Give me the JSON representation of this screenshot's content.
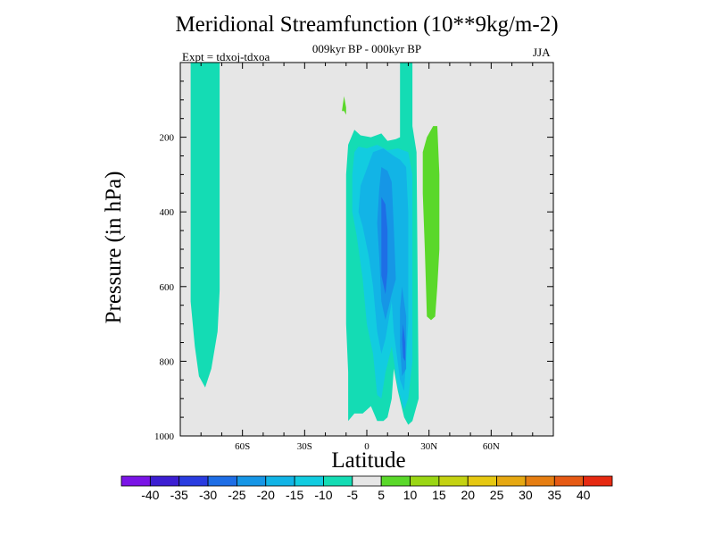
{
  "chart_data": {
    "type": "contour",
    "title": "Meridional Streamfunction (10**9kg/m-2)",
    "subtitle": "009kyr BP - 000kyr BP",
    "experiment_label": "Expt = tdxoj-tdxoa",
    "season": "JJA",
    "xlabel": "Latitude",
    "ylabel": "Pressure (in hPa)",
    "xlim": [
      -90,
      90
    ],
    "ylim": [
      1000,
      0
    ],
    "x_ticks": [
      {
        "value": -60,
        "label": "60S"
      },
      {
        "value": -30,
        "label": "30S"
      },
      {
        "value": 0,
        "label": "0"
      },
      {
        "value": 30,
        "label": "30N"
      },
      {
        "value": 60,
        "label": "60N"
      }
    ],
    "y_ticks": [
      {
        "value": 200,
        "label": "200"
      },
      {
        "value": 400,
        "label": "400"
      },
      {
        "value": 600,
        "label": "600"
      },
      {
        "value": 800,
        "label": "800"
      },
      {
        "value": 1000,
        "label": "1000"
      }
    ],
    "background_color": "#e6e6e6",
    "colorbar": {
      "levels": [
        -40,
        -35,
        -30,
        -25,
        -20,
        -15,
        -10,
        -5,
        5,
        10,
        15,
        20,
        25,
        30,
        35,
        40
      ],
      "labels": [
        "-40",
        "-35",
        "-30",
        "-25",
        "-20",
        "-15",
        "-10",
        "-5",
        "5",
        "10",
        "15",
        "20",
        "25",
        "30",
        "35",
        "40"
      ],
      "colors": [
        "#7a14e6",
        "#3c1ed2",
        "#2a3ce0",
        "#1e6ee6",
        "#1696e6",
        "#12b4e6",
        "#12cce0",
        "#14dcb4",
        "#e6e6e6",
        "#5ad82a",
        "#9ad614",
        "#c4d212",
        "#e6c812",
        "#e6a812",
        "#e67e12",
        "#e65a14",
        "#e62a12"
      ]
    },
    "regions": [
      {
        "fill": "#14dcb4",
        "points": [
          [
            -85,
            0
          ],
          [
            -71,
            0
          ],
          [
            -71,
            610
          ],
          [
            -72,
            720
          ],
          [
            -75,
            820
          ],
          [
            -78,
            870
          ],
          [
            -81,
            840
          ],
          [
            -83,
            760
          ],
          [
            -85,
            640
          ]
        ]
      },
      {
        "fill": "#5ad82a",
        "points": [
          [
            -12,
            130
          ],
          [
            -11,
            90
          ],
          [
            -10,
            120
          ],
          [
            -10,
            140
          ],
          [
            -11,
            130
          ]
        ]
      },
      {
        "fill": "#14dcb4",
        "points": [
          [
            -9,
            220
          ],
          [
            -6,
            180
          ],
          [
            -3,
            195
          ],
          [
            2,
            200
          ],
          [
            7,
            190
          ],
          [
            10,
            210
          ],
          [
            14,
            205
          ],
          [
            16,
            200
          ],
          [
            16,
            0
          ],
          [
            22,
            0
          ],
          [
            22,
            170
          ],
          [
            24,
            240
          ],
          [
            25,
            900
          ],
          [
            22,
            960
          ],
          [
            20,
            970
          ],
          [
            18,
            950
          ],
          [
            15,
            880
          ],
          [
            13,
            820
          ],
          [
            12,
            900
          ],
          [
            10,
            950
          ],
          [
            8,
            960
          ],
          [
            5,
            960
          ],
          [
            2,
            920
          ],
          [
            -2,
            940
          ],
          [
            -6,
            940
          ],
          [
            -9,
            960
          ],
          [
            -9,
            830
          ],
          [
            -10,
            700
          ],
          [
            -10,
            600
          ],
          [
            -10,
            470
          ],
          [
            -10,
            300
          ]
        ]
      },
      {
        "fill": "#12cce0",
        "points": [
          [
            -6,
            240
          ],
          [
            -4,
            225
          ],
          [
            0,
            230
          ],
          [
            5,
            220
          ],
          [
            10,
            235
          ],
          [
            15,
            230
          ],
          [
            20,
            240
          ],
          [
            22,
            300
          ],
          [
            22,
            800
          ],
          [
            20,
            900
          ],
          [
            18,
            930
          ],
          [
            15,
            870
          ],
          [
            12,
            760
          ],
          [
            9,
            830
          ],
          [
            7,
            900
          ],
          [
            5,
            890
          ],
          [
            3,
            780
          ],
          [
            0,
            700
          ],
          [
            -2,
            580
          ],
          [
            -5,
            460
          ],
          [
            -7,
            400
          ],
          [
            -7,
            300
          ]
        ]
      },
      {
        "fill": "#12b4e6",
        "points": [
          [
            3,
            240
          ],
          [
            8,
            230
          ],
          [
            13,
            250
          ],
          [
            16,
            260
          ],
          [
            19,
            280
          ],
          [
            20,
            400
          ],
          [
            20,
            700
          ],
          [
            18,
            880
          ],
          [
            16,
            850
          ],
          [
            13,
            720
          ],
          [
            12,
            640
          ],
          [
            9,
            740
          ],
          [
            7,
            780
          ],
          [
            5,
            720
          ],
          [
            3,
            600
          ],
          [
            1,
            520
          ],
          [
            -2,
            440
          ],
          [
            -4,
            400
          ],
          [
            -3,
            330
          ],
          [
            1,
            270
          ]
        ]
      },
      {
        "fill": "#1696e6",
        "points": [
          [
            7,
            280
          ],
          [
            10,
            290
          ],
          [
            12,
            320
          ],
          [
            13,
            440
          ],
          [
            14,
            580
          ],
          [
            12,
            620
          ],
          [
            9,
            690
          ],
          [
            7,
            640
          ],
          [
            6,
            520
          ],
          [
            5,
            430
          ],
          [
            6,
            340
          ]
        ]
      },
      {
        "fill": "#1e6ee6",
        "points": [
          [
            7,
            360
          ],
          [
            9,
            380
          ],
          [
            10,
            450
          ],
          [
            10,
            560
          ],
          [
            9,
            620
          ],
          [
            7,
            570
          ],
          [
            7,
            460
          ]
        ]
      },
      {
        "fill": "#1696e6",
        "points": [
          [
            17,
            600
          ],
          [
            19,
            680
          ],
          [
            19,
            820
          ],
          [
            17,
            840
          ],
          [
            16,
            760
          ],
          [
            16,
            660
          ]
        ]
      },
      {
        "fill": "#1e6ee6",
        "points": [
          [
            17.5,
            700
          ],
          [
            18.5,
            750
          ],
          [
            18.5,
            800
          ],
          [
            17.5,
            790
          ],
          [
            17,
            740
          ]
        ]
      },
      {
        "fill": "#5ad82a",
        "points": [
          [
            27,
            240
          ],
          [
            29,
            200
          ],
          [
            32,
            170
          ],
          [
            34,
            170
          ],
          [
            35,
            300
          ],
          [
            35,
            500
          ],
          [
            34,
            600
          ],
          [
            33,
            680
          ],
          [
            31,
            690
          ],
          [
            29,
            680
          ],
          [
            28,
            500
          ],
          [
            27,
            350
          ]
        ]
      }
    ]
  }
}
